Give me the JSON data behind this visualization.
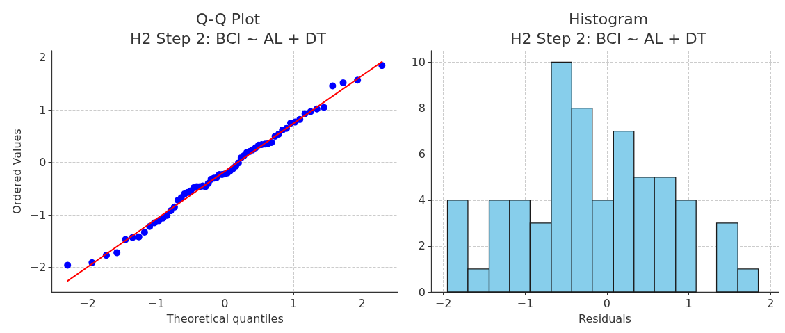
{
  "chart_data": [
    {
      "type": "scatter",
      "title": "Q-Q Plot\nH2 Step 2: BCI ~ AL + DT",
      "xlabel": "Theoretical quantiles",
      "ylabel": "Ordered Values",
      "xlim": [
        -2.52,
        2.53
      ],
      "ylim": [
        -2.47,
        2.13
      ],
      "xticks": [
        -2,
        -1,
        0,
        1,
        2
      ],
      "yticks": [
        -2,
        -1,
        0,
        1,
        2
      ],
      "grid": true,
      "series": [
        {
          "type": "scatter",
          "color": "#0000ff",
          "marker": "circle",
          "x": [
            -2.29,
            -1.934,
            -1.725,
            -1.571,
            -1.446,
            -1.343,
            -1.251,
            -1.169,
            -1.094,
            -1.025,
            -0.96,
            -0.899,
            -0.841,
            -0.786,
            -0.733,
            -0.682,
            -0.633,
            -0.586,
            -0.539,
            -0.494,
            -0.45,
            -0.406,
            -0.364,
            -0.321,
            -0.28,
            -0.239,
            -0.199,
            -0.159,
            -0.119,
            -0.079,
            -0.039,
            0,
            0.039,
            0.079,
            0.119,
            0.159,
            0.199,
            0.239,
            0.28,
            0.321,
            0.364,
            0.406,
            0.45,
            0.494,
            0.539,
            0.586,
            0.633,
            0.682,
            0.733,
            0.786,
            0.841,
            0.899,
            0.96,
            1.025,
            1.094,
            1.169,
            1.251,
            1.343,
            1.446,
            1.571,
            1.725,
            1.934,
            2.29
          ],
          "values": [
            -1.96,
            -1.91,
            -1.77,
            -1.72,
            -1.47,
            -1.43,
            -1.42,
            -1.33,
            -1.22,
            -1.15,
            -1.11,
            -1.06,
            -1.01,
            -0.92,
            -0.85,
            -0.72,
            -0.67,
            -0.6,
            -0.57,
            -0.54,
            -0.48,
            -0.46,
            -0.46,
            -0.45,
            -0.46,
            -0.4,
            -0.32,
            -0.3,
            -0.29,
            -0.23,
            -0.23,
            -0.22,
            -0.2,
            -0.16,
            -0.12,
            -0.07,
            -0.01,
            0.09,
            0.13,
            0.19,
            0.21,
            0.24,
            0.28,
            0.33,
            0.34,
            0.35,
            0.36,
            0.38,
            0.5,
            0.54,
            0.62,
            0.65,
            0.75,
            0.77,
            0.82,
            0.93,
            0.97,
            1.02,
            1.05,
            1.46,
            1.52,
            1.57,
            1.85
          ]
        },
        {
          "type": "line",
          "color": "#ff0000",
          "marker": "none",
          "x": [
            -2.29,
            2.29
          ],
          "values": [
            -2.26,
            1.92
          ]
        }
      ]
    },
    {
      "type": "histogram",
      "title": "Histogram\nH2 Step 2: BCI ~ AL + DT",
      "xlabel": "Residuals",
      "xlim": [
        -2.15,
        2.1
      ],
      "ylim": [
        0,
        10.5
      ],
      "xticks": [
        -2,
        -1,
        0,
        1,
        2
      ],
      "yticks": [
        0,
        2,
        4,
        6,
        8,
        10
      ],
      "grid": true,
      "color": "#87ceeb",
      "bins": [
        -1.95,
        -1.7,
        -1.44,
        -1.19,
        -0.94,
        -0.68,
        -0.43,
        -0.18,
        0.08,
        0.33,
        0.58,
        0.84,
        1.09,
        1.34,
        1.6,
        1.85
      ],
      "values": [
        4,
        1,
        4,
        4,
        3,
        10,
        8,
        4,
        7,
        5,
        5,
        4,
        0,
        3,
        1
      ]
    }
  ]
}
